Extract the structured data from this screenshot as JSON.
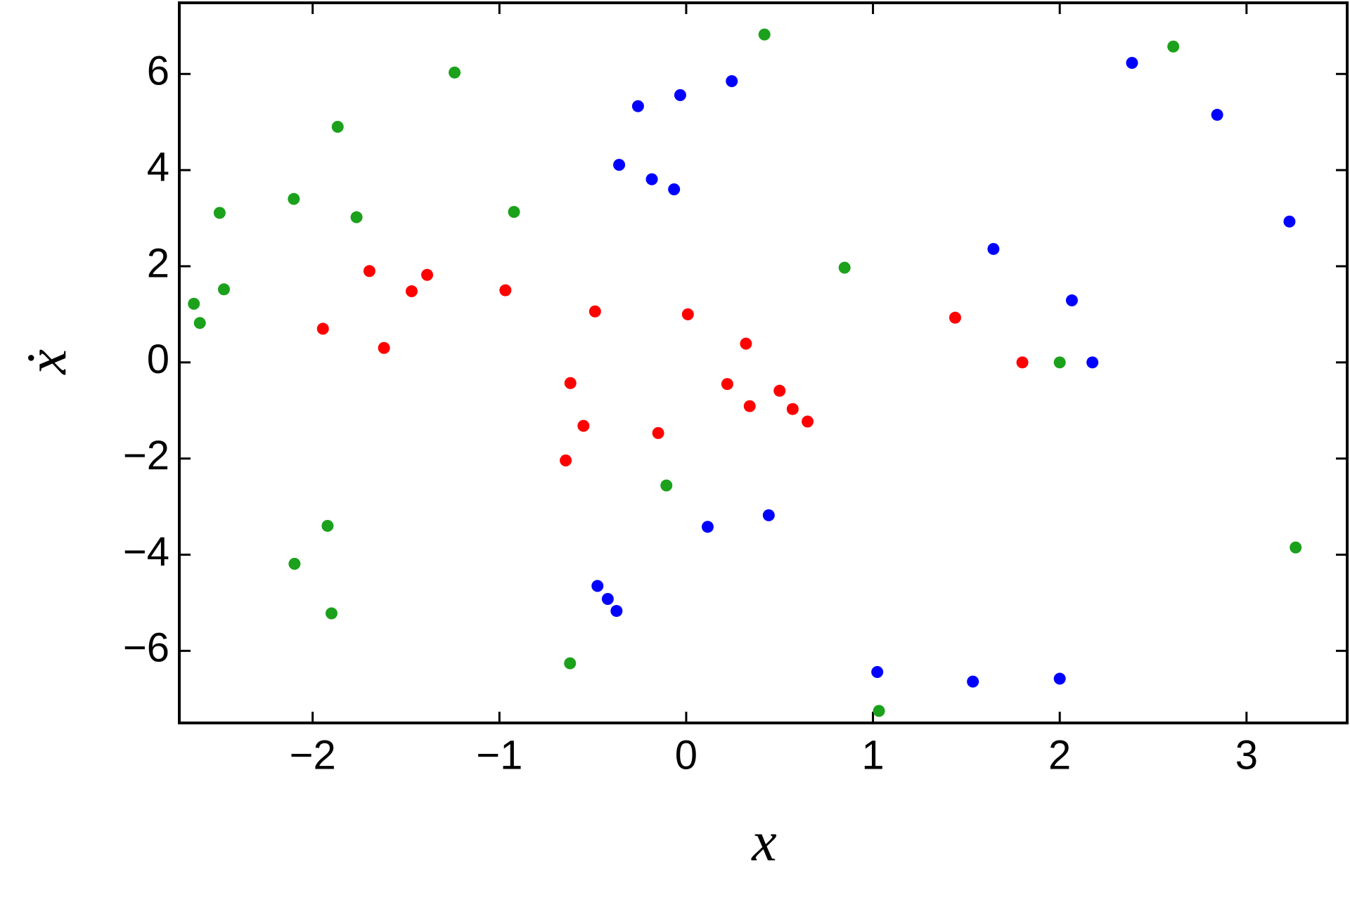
{
  "chart_data": {
    "type": "scatter",
    "xlabel": "x",
    "ylabel": "ẋ",
    "xlim": [
      -2.714,
      3.539
    ],
    "ylim": [
      -7.5,
      7.48
    ],
    "xticks": [
      {
        "value": -2,
        "label": "−2"
      },
      {
        "value": -1,
        "label": "−1"
      },
      0,
      1,
      2,
      3
    ],
    "yticks": [
      {
        "value": -6,
        "label": "−6"
      },
      {
        "value": -4,
        "label": "−4"
      },
      {
        "value": -2,
        "label": "−2"
      },
      0,
      2,
      4,
      6
    ],
    "series": [
      {
        "color": "#ff0000",
        "x": [
          -1.696,
          -1.387,
          -1.47,
          -1.945,
          -1.618,
          -0.968,
          -0.488,
          0.009,
          0.32,
          1.44,
          1.8,
          -0.62,
          0.22,
          0.5,
          0.34,
          0.57,
          0.65,
          -0.55,
          -0.15,
          -0.645
        ],
        "values": [
          1.9,
          1.82,
          1.48,
          0.7,
          0.3,
          1.5,
          1.06,
          1.0,
          0.39,
          0.93,
          0.0,
          -0.43,
          -0.45,
          -0.59,
          -0.91,
          -0.97,
          -1.23,
          -1.32,
          -1.47,
          -2.04
        ]
      },
      {
        "color": "#0000ff",
        "x": [
          2.387,
          0.244,
          -0.032,
          -0.258,
          2.843,
          -0.359,
          -0.184,
          -0.065,
          3.23,
          1.645,
          2.065,
          2.175,
          0.442,
          0.115,
          -0.475,
          -0.42,
          -0.373,
          1.023,
          1.535,
          2.0
        ],
        "values": [
          6.23,
          5.85,
          5.56,
          5.33,
          5.15,
          4.11,
          3.81,
          3.6,
          2.93,
          2.36,
          1.29,
          0.0,
          -3.18,
          -3.42,
          -4.65,
          -4.92,
          -5.17,
          -6.44,
          -6.64,
          -6.58
        ]
      },
      {
        "color": "#1ba11b",
        "x": [
          0.419,
          2.608,
          -1.24,
          -1.866,
          -2.498,
          -2.101,
          -1.765,
          -0.922,
          -2.475,
          -2.636,
          -2.604,
          0.848,
          2.0,
          -0.106,
          -1.92,
          -2.097,
          -1.899,
          -0.622,
          3.263,
          1.032
        ],
        "values": [
          6.82,
          6.57,
          6.03,
          4.9,
          3.11,
          3.4,
          3.02,
          3.13,
          1.52,
          1.22,
          0.82,
          1.97,
          0.0,
          -2.56,
          -3.4,
          -4.19,
          -5.22,
          -6.26,
          -3.85,
          -7.25
        ]
      }
    ]
  }
}
